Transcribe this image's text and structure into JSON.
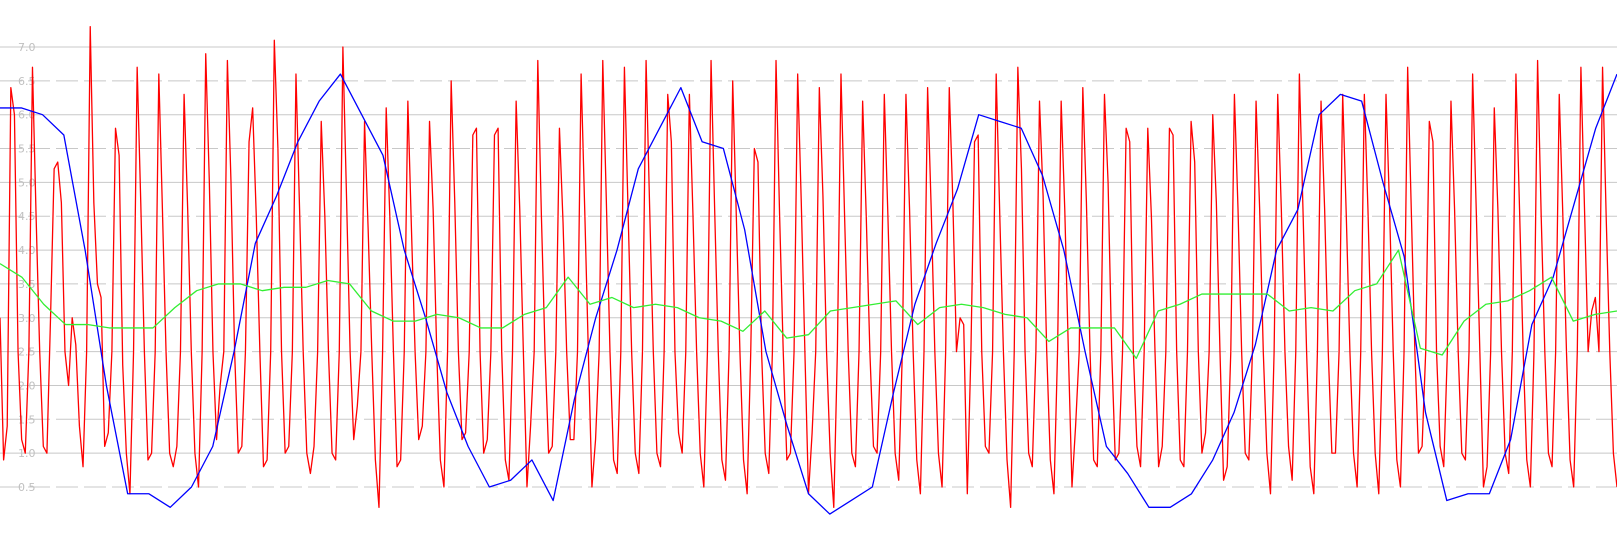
{
  "chart_data": {
    "type": "line",
    "title": "",
    "xlabel": "",
    "ylabel": "",
    "grid": true,
    "legend": "none",
    "ylim": [
      0.0,
      7.5
    ],
    "yticks": [
      "0.5",
      "1.0",
      "1.5",
      "2.0",
      "2.5",
      "3.0",
      "3.5",
      "4.0",
      "4.5",
      "5.0",
      "5.5",
      "6.0",
      "6.5",
      "7.0"
    ],
    "colors": {
      "background": "#ffffff",
      "grid_solid": "#c8c8c8",
      "grid_dashed": "#c8c8c8",
      "tick_text": "#c0c0c0"
    },
    "series": [
      {
        "color": "#ff0000",
        "values": [
          3.0,
          0.9,
          1.4,
          6.4,
          6.0,
          2.5,
          1.2,
          1.0,
          2.5,
          6.7,
          4.5,
          2.5,
          1.1,
          1.0,
          3.0,
          5.2,
          5.3,
          4.7,
          2.5,
          2.0,
          3.0,
          2.6,
          1.4,
          0.8,
          2.5,
          7.3,
          4.7,
          3.5,
          3.3,
          1.1,
          1.3,
          2.5,
          5.8,
          5.4,
          2.3,
          1.0,
          0.4,
          2.5,
          6.7,
          4.7,
          2.5,
          0.9,
          1.0,
          2.5,
          6.6,
          4.6,
          2.5,
          1.0,
          0.8,
          1.1,
          2.5,
          6.3,
          4.6,
          2.5,
          1.0,
          0.5,
          2.5,
          6.9,
          5.0,
          2.5,
          1.2,
          2.0,
          2.5,
          6.8,
          5.0,
          2.5,
          1.0,
          1.1,
          2.5,
          5.6,
          6.1,
          4.5,
          2.5,
          0.8,
          0.9,
          2.5,
          7.1,
          5.5,
          2.5,
          1.0,
          1.1,
          2.5,
          6.6,
          4.6,
          2.5,
          1.0,
          0.7,
          1.1,
          2.5,
          5.9,
          4.5,
          2.5,
          1.0,
          0.9,
          2.5,
          7.0,
          4.8,
          2.5,
          1.2,
          1.7,
          2.5,
          5.9,
          4.3,
          2.5,
          0.9,
          0.2,
          2.5,
          6.1,
          4.5,
          2.5,
          0.8,
          0.9,
          2.5,
          6.2,
          4.3,
          2.5,
          1.2,
          1.4,
          2.5,
          5.9,
          4.6,
          2.5,
          0.9,
          0.5,
          2.5,
          6.5,
          4.7,
          2.5,
          1.2,
          1.3,
          2.5,
          5.7,
          5.8,
          2.5,
          1.0,
          1.2,
          2.5,
          5.7,
          5.8,
          2.5,
          0.9,
          0.6,
          2.5,
          6.2,
          4.6,
          2.5,
          0.5,
          1.4,
          2.5,
          6.8,
          4.5,
          2.5,
          1.0,
          1.1,
          2.5,
          5.8,
          4.4,
          2.5,
          1.2,
          1.2,
          2.5,
          6.6,
          4.6,
          2.5,
          0.5,
          1.2,
          2.5,
          6.8,
          4.7,
          2.5,
          0.9,
          0.7,
          2.5,
          6.7,
          4.6,
          2.5,
          1.0,
          0.7,
          2.5,
          6.8,
          4.6,
          2.5,
          1.0,
          0.8,
          2.5,
          6.3,
          5.6,
          2.5,
          1.3,
          1.0,
          2.5,
          6.3,
          4.5,
          2.5,
          1.0,
          0.5,
          2.5,
          6.8,
          4.6,
          2.5,
          0.9,
          0.6,
          2.5,
          6.5,
          4.5,
          2.5,
          0.9,
          0.4,
          2.5,
          5.5,
          5.3,
          2.5,
          1.0,
          0.7,
          2.5,
          6.8,
          4.5,
          2.5,
          0.9,
          1.0,
          2.5,
          6.6,
          4.7,
          2.5,
          0.4,
          1.3,
          2.5,
          6.4,
          4.8,
          2.5,
          1.0,
          0.2,
          2.5,
          6.6,
          4.5,
          2.5,
          1.0,
          0.8,
          2.5,
          6.2,
          4.5,
          2.5,
          1.1,
          1.0,
          2.5,
          6.3,
          4.5,
          2.5,
          1.0,
          0.6,
          2.5,
          6.3,
          4.6,
          2.5,
          0.9,
          0.4,
          2.5,
          6.4,
          4.6,
          2.5,
          1.0,
          0.5,
          2.5,
          6.4,
          4.7,
          2.5,
          3.0,
          2.9,
          0.4,
          2.5,
          5.6,
          5.7,
          2.5,
          1.1,
          1.0,
          2.5,
          6.6,
          4.5,
          2.5,
          0.9,
          0.2,
          2.5,
          6.7,
          5.2,
          2.5,
          1.0,
          0.8,
          2.5,
          6.2,
          4.8,
          2.5,
          0.9,
          0.4,
          2.5,
          6.2,
          4.6,
          2.5,
          0.5,
          1.4,
          2.5,
          6.4,
          4.7,
          2.5,
          0.9,
          0.8,
          2.5,
          6.3,
          5.0,
          2.5,
          0.9,
          1.0,
          2.5,
          5.8,
          5.6,
          2.5,
          1.1,
          0.8,
          2.5,
          5.8,
          4.5,
          2.5,
          0.8,
          1.1,
          2.5,
          5.8,
          5.7,
          2.5,
          0.9,
          0.8,
          2.5,
          5.9,
          5.3,
          2.5,
          1.0,
          1.3,
          2.5,
          6.0,
          4.7,
          2.5,
          0.6,
          0.8,
          2.5,
          6.3,
          4.6,
          2.5,
          1.0,
          0.9,
          2.5,
          6.2,
          4.6,
          2.5,
          1.0,
          0.4,
          2.5,
          6.3,
          4.6,
          2.5,
          1.1,
          0.6,
          2.5,
          6.6,
          4.6,
          2.5,
          0.8,
          0.4,
          2.5,
          6.2,
          4.6,
          2.5,
          1.0,
          1.0,
          2.5,
          6.3,
          4.5,
          2.5,
          1.0,
          0.5,
          2.5,
          6.3,
          4.6,
          2.5,
          1.0,
          0.4,
          2.5,
          6.3,
          4.6,
          2.5,
          0.9,
          0.5,
          2.5,
          6.7,
          4.6,
          2.5,
          1.0,
          1.1,
          2.5,
          5.9,
          5.6,
          2.5,
          1.1,
          0.8,
          2.5,
          6.2,
          4.6,
          2.5,
          1.0,
          0.9,
          2.5,
          6.6,
          4.6,
          2.5,
          0.5,
          0.8,
          2.5,
          6.1,
          4.6,
          2.5,
          1.0,
          0.7,
          2.5,
          6.6,
          4.6,
          2.5,
          0.9,
          0.5,
          2.5,
          6.8,
          4.5,
          2.5,
          1.0,
          0.8,
          2.5,
          6.3,
          4.5,
          2.5,
          0.9,
          0.5,
          2.5,
          6.7,
          4.6,
          2.5,
          3.1,
          3.3,
          2.5,
          6.7,
          4.5,
          2.5,
          1.0,
          0.5
        ]
      },
      {
        "color": "#0000ff",
        "values": [
          6.1,
          6.1,
          6.0,
          5.7,
          4.0,
          2.0,
          0.4,
          0.4,
          0.2,
          0.5,
          1.1,
          2.5,
          4.1,
          4.8,
          5.6,
          6.2,
          6.6,
          6.0,
          5.4,
          4.0,
          3.0,
          1.9,
          1.1,
          0.5,
          0.6,
          0.9,
          0.3,
          1.8,
          3.0,
          4.0,
          5.2,
          5.8,
          6.4,
          5.6,
          5.5,
          4.3,
          2.5,
          1.4,
          0.4,
          0.1,
          0.3,
          0.5,
          1.9,
          3.2,
          4.1,
          4.9,
          6.0,
          5.9,
          5.8,
          5.1,
          4.0,
          2.5,
          1.1,
          0.7,
          0.2,
          0.2,
          0.4,
          0.9,
          1.6,
          2.6,
          4.0,
          4.6,
          6.0,
          6.3,
          6.2,
          5.0,
          3.9,
          1.6,
          0.3,
          0.4,
          0.4,
          1.2,
          2.9,
          3.6,
          4.7,
          5.8,
          6.6
        ]
      },
      {
        "color": "#33ee33",
        "values": [
          3.8,
          3.6,
          3.2,
          2.9,
          2.9,
          2.85,
          2.85,
          2.85,
          3.15,
          3.4,
          3.5,
          3.5,
          3.4,
          3.45,
          3.45,
          3.55,
          3.5,
          3.1,
          2.95,
          2.95,
          3.05,
          3.0,
          2.85,
          2.85,
          3.05,
          3.15,
          3.6,
          3.2,
          3.3,
          3.15,
          3.2,
          3.15,
          3.0,
          2.95,
          2.8,
          3.1,
          2.7,
          2.75,
          3.1,
          3.15,
          3.2,
          3.25,
          2.9,
          3.15,
          3.2,
          3.15,
          3.05,
          3.0,
          2.65,
          2.85,
          2.85,
          2.85,
          2.4,
          3.1,
          3.2,
          3.35,
          3.35,
          3.35,
          3.35,
          3.1,
          3.15,
          3.1,
          3.4,
          3.5,
          4.0,
          2.55,
          2.45,
          2.95,
          3.2,
          3.25,
          3.4,
          3.6,
          2.95,
          3.05,
          3.1
        ]
      }
    ]
  }
}
